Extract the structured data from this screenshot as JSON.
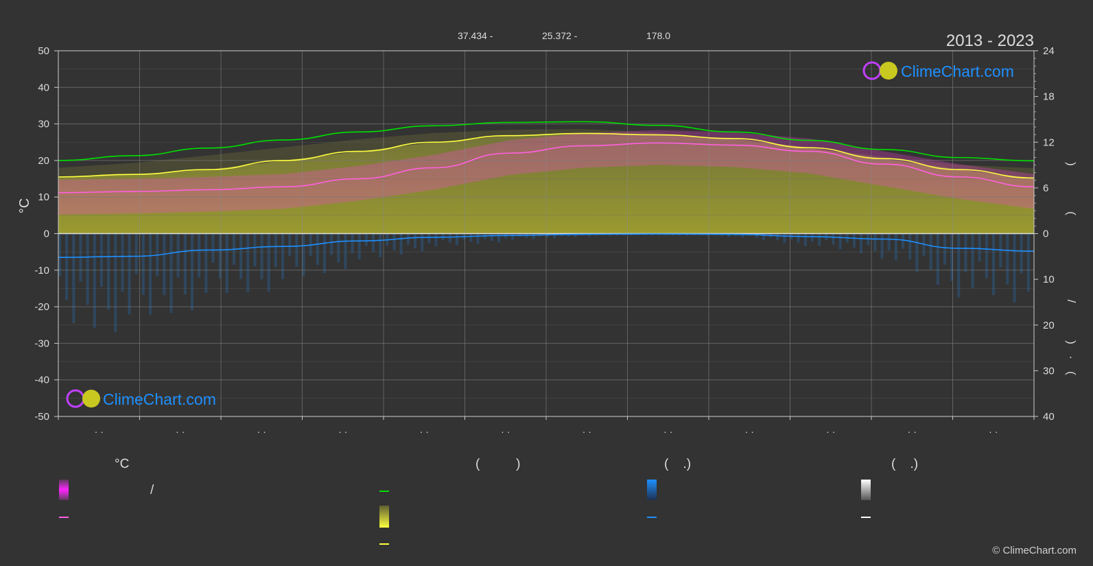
{
  "header": {
    "period": "2013 - 2023",
    "coords": [
      "37.434 -",
      "25.372 -",
      "178.0"
    ]
  },
  "logo": {
    "text": "ClimeChart.com"
  },
  "copyright": "© ClimeChart.com",
  "colors": {
    "background": "#333333",
    "daylight": "#00e000",
    "sunshine": "#ffff40",
    "sunshine_fill": "#9a9a30",
    "temp_mean": "#ff60e0",
    "temp_band": "#ff40e0",
    "rain": "#1e90ff",
    "snow": "#ffffff",
    "logo_text": "#1e90ff"
  },
  "legend": {
    "col1": {
      "header": "°C",
      "slash": "/"
    },
    "col2": {
      "header": "(          )"
    },
    "col3": {
      "header": "(    .)"
    },
    "col4": {
      "header": "(    .)"
    }
  },
  "chart_data": {
    "type": "line",
    "title": "",
    "xlabel": "",
    "ylabel": "°C",
    "ylim": [
      -50,
      50
    ],
    "y_ticks": [
      50,
      40,
      30,
      20,
      10,
      0,
      -10,
      -20,
      -30,
      -40,
      -50
    ],
    "y2_ticks_upper": [
      24,
      18,
      12,
      6,
      0
    ],
    "y2_ticks_lower": [
      10,
      20,
      30,
      40
    ],
    "y2_label_chars": [
      ")",
      "(",
      "/",
      ")",
      "·",
      "("
    ],
    "x_tick_label": "· ·",
    "x_count": 12,
    "series": [
      {
        "key": "daylight",
        "values": [
          20.0,
          21.3,
          23.4,
          25.6,
          27.8,
          29.5,
          30.4,
          30.6,
          29.6,
          27.8,
          25.5,
          23.0,
          20.8,
          19.9
        ]
      },
      {
        "key": "sunshine",
        "values": [
          15.5,
          16.2,
          17.5,
          20.0,
          22.5,
          25.0,
          26.8,
          27.4,
          27.0,
          26.0,
          23.5,
          20.5,
          17.5,
          15.2
        ]
      },
      {
        "key": "temp_mean",
        "values": [
          11.2,
          11.5,
          12.0,
          12.8,
          15.0,
          18.0,
          22.0,
          24.0,
          24.8,
          24.2,
          22.5,
          19.0,
          15.5,
          12.8
        ]
      },
      {
        "key": "rain",
        "values": [
          -6.5,
          -6.2,
          -4.5,
          -3.5,
          -2.0,
          -1.0,
          -0.5,
          -0.2,
          -0.1,
          -0.2,
          -0.8,
          -1.5,
          -4.0,
          -4.8
        ]
      }
    ]
  }
}
